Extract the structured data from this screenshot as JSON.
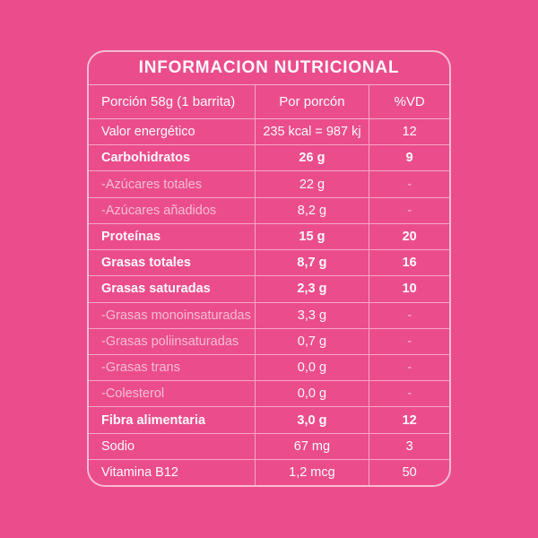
{
  "colors": {
    "background": "#EB4D8C",
    "line": "rgba(255,255,255,0.55)",
    "text_bright": "#FFFFFF",
    "text_faded": "rgba(255,255,255,0.62)"
  },
  "table": {
    "title": "INFORMACION NUTRICIONAL",
    "columns": [
      "Porción 58g (1 barrita)",
      "Por porcón",
      "%VD"
    ],
    "rows": [
      {
        "label": "Valor energético",
        "value": "235 kcal = 987 kj",
        "vd": "12",
        "style": "normal"
      },
      {
        "label": "Carbohidratos",
        "value": "26 g",
        "vd": "9",
        "style": "bold"
      },
      {
        "label": "-Azúcares totales",
        "value": "22 g",
        "vd": "-",
        "style": "sub"
      },
      {
        "label": "-Azúcares añadidos",
        "value": "8,2 g",
        "vd": "-",
        "style": "sub"
      },
      {
        "label": "Proteínas",
        "value": "15 g",
        "vd": "20",
        "style": "bold"
      },
      {
        "label": "Grasas totales",
        "value": "8,7 g",
        "vd": "16",
        "style": "bold"
      },
      {
        "label": "Grasas saturadas",
        "value": "2,3 g",
        "vd": "10",
        "style": "bold"
      },
      {
        "label": "-Grasas monoinsaturadas",
        "value": "3,3 g",
        "vd": "-",
        "style": "sub"
      },
      {
        "label": "-Grasas poliinsaturadas",
        "value": "0,7 g",
        "vd": "-",
        "style": "sub"
      },
      {
        "label": "-Grasas trans",
        "value": "0,0 g",
        "vd": "-",
        "style": "sub"
      },
      {
        "label": "-Colesterol",
        "value": "0,0 g",
        "vd": "-",
        "style": "sub"
      },
      {
        "label": "Fibra alimentaria",
        "value": "3,0 g",
        "vd": "12",
        "style": "bold"
      },
      {
        "label": "Sodio",
        "value": "67 mg",
        "vd": "3",
        "style": "normal"
      },
      {
        "label": "Vitamina B12",
        "value": "1,2 mcg",
        "vd": "50",
        "style": "normal"
      }
    ]
  }
}
